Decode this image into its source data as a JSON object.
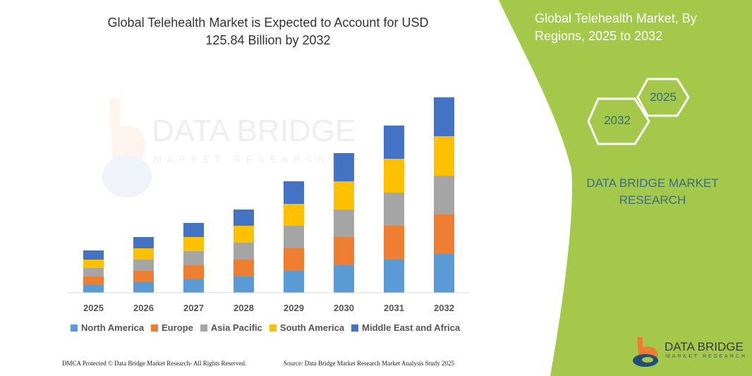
{
  "header": {
    "title_line1": "Global Telehealth Market is Expected to Account for USD",
    "title_line2": "125.84 Billion by 2032"
  },
  "side_panel": {
    "title_line1": "Global Telehealth Market, By",
    "title_line2": "Regions, 2025 to 2032",
    "hex_start": "2025",
    "hex_end": "2032",
    "brand_line1": "DATA BRIDGE MARKET",
    "brand_line2": "RESEARCH",
    "panel_color": "#a4c84a"
  },
  "logo": {
    "name": "DATA BRIDGE",
    "sub": "MARKET RESEARCH"
  },
  "watermark": {
    "name": "DATA BRIDGE",
    "sub": "MARKET RESEARCH"
  },
  "footer": {
    "left": "DMCA Protected © Data Bridge Market Research- All Rights Reserved.",
    "right": "Source: Data Bridge Market Research Market Analysis Study 2025"
  },
  "chart_data": {
    "type": "bar",
    "stacked": true,
    "title": "Global Telehealth Market is Expected to Account for USD 125.84 Billion by 2032",
    "categories": [
      "2025",
      "2026",
      "2027",
      "2028",
      "2029",
      "2030",
      "2031",
      "2032"
    ],
    "series": [
      {
        "name": "North America",
        "color": "#5b9bd5",
        "values": [
          11,
          15,
          19,
          23,
          31,
          39,
          47,
          55
        ]
      },
      {
        "name": "Europe",
        "color": "#ed7d31",
        "values": [
          12,
          16,
          20,
          24,
          32,
          40,
          48,
          56
        ]
      },
      {
        "name": "Asia Pacific",
        "color": "#a5a5a5",
        "values": [
          12,
          16,
          20,
          24,
          32,
          39,
          47,
          55
        ]
      },
      {
        "name": "South America",
        "color": "#ffc000",
        "values": [
          12,
          16,
          20,
          24,
          31,
          40,
          48,
          56
        ]
      },
      {
        "name": "Middle East and Africa",
        "color": "#4472c4",
        "values": [
          13,
          16,
          20,
          23,
          32,
          40,
          47,
          55
        ]
      }
    ],
    "y_axis_shown": false,
    "grid": false,
    "legend_placement": "bottom"
  }
}
